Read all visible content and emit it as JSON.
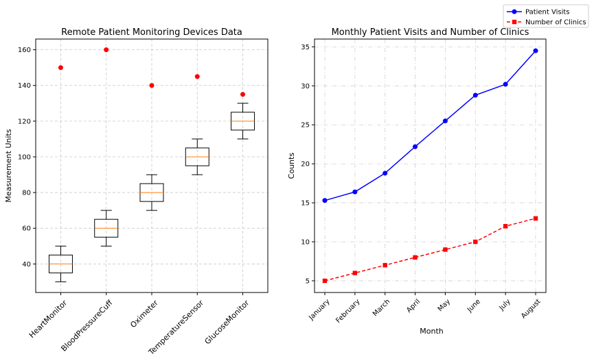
{
  "chart_data": [
    {
      "type": "box",
      "title": "Remote Patient Monitoring Devices Data",
      "xlabel": "",
      "ylabel": "Measurement Units",
      "ylim": [
        24,
        166
      ],
      "yticks": [
        40,
        60,
        80,
        100,
        120,
        140,
        160
      ],
      "grid": true,
      "categories": [
        "HeartMonitor",
        "BloodPressureCuff",
        "Oximeter",
        "TemperatureSensor",
        "GlucoseMonitor"
      ],
      "boxes": [
        {
          "min": 30,
          "q1": 35,
          "median": 40,
          "q3": 45,
          "max": 50,
          "outliers": [
            150
          ]
        },
        {
          "min": 50,
          "q1": 55,
          "median": 60,
          "q3": 65,
          "max": 70,
          "outliers": [
            160
          ]
        },
        {
          "min": 70,
          "q1": 75,
          "median": 80,
          "q3": 85,
          "max": 90,
          "outliers": [
            140
          ]
        },
        {
          "min": 90,
          "q1": 95,
          "median": 100,
          "q3": 105,
          "max": 110,
          "outliers": [
            145
          ]
        },
        {
          "min": 110,
          "q1": 115,
          "median": 120,
          "q3": 125,
          "max": 130,
          "outliers": [
            135
          ]
        }
      ],
      "colors": {
        "box": "#000000",
        "median": "#ff7f0e",
        "outlier": "#ff0000"
      }
    },
    {
      "type": "line",
      "title": "Monthly Patient Visits and Number of Clinics",
      "xlabel": "Month",
      "ylabel": "Counts",
      "ylim": [
        3.5,
        36
      ],
      "yticks": [
        5,
        10,
        15,
        20,
        25,
        30,
        35
      ],
      "grid": true,
      "categories": [
        "January",
        "February",
        "March",
        "April",
        "May",
        "June",
        "July",
        "August"
      ],
      "series": [
        {
          "name": "Patient Visits",
          "values": [
            15.3,
            16.4,
            18.8,
            22.2,
            25.5,
            28.8,
            30.2,
            34.5
          ],
          "color": "#0000ff",
          "marker": "circle",
          "linestyle": "solid"
        },
        {
          "name": "Number of Clinics",
          "values": [
            5,
            6,
            7,
            8,
            9,
            10,
            12,
            13
          ],
          "color": "#ff0000",
          "marker": "square",
          "linestyle": "dashed"
        }
      ],
      "legend": "top-right"
    }
  ]
}
